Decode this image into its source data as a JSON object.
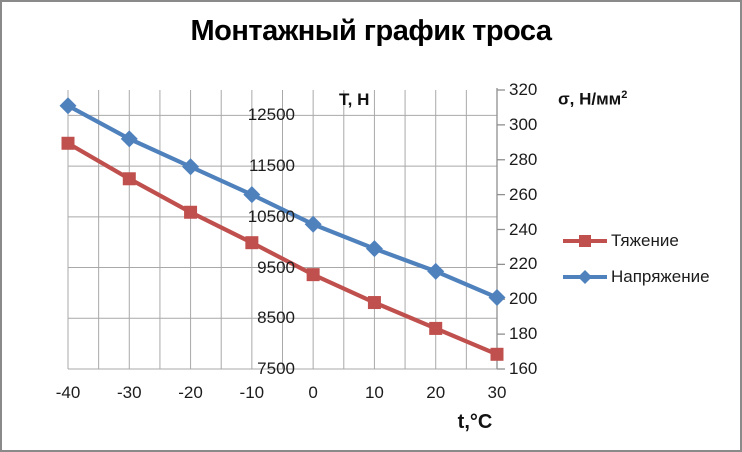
{
  "title": "Монтажный график троса",
  "colors": {
    "tension_series": "#C0504D",
    "stress_series": "#4F81BD",
    "gridline": "#A9A9A9",
    "axis_line": "#8F8F8F",
    "frame_border": "#8A8A8A",
    "text": "#1C1C1C",
    "background": "#FFFFFF"
  },
  "chart_data": {
    "type": "line",
    "title": "Монтажный график троса",
    "xlabel": "t,°С",
    "x": [
      -40,
      -30,
      -20,
      -10,
      0,
      10,
      20,
      30
    ],
    "axes": {
      "x": {
        "min": -40,
        "max": 30,
        "gridline_step": 5,
        "ticks": [
          -40,
          -30,
          -20,
          -10,
          0,
          10,
          20,
          30
        ]
      },
      "y_left": {
        "title": "Т, Н",
        "min": 7500,
        "max": 13000,
        "gridline_step": 1000,
        "ticks": [
          12500,
          11500,
          10500,
          9500,
          8500,
          7500
        ]
      },
      "y_right": {
        "title": "σ, Н/мм²",
        "title_base": "σ, Н/мм",
        "title_sup": "2",
        "min": 160,
        "max": 320,
        "tick_step": 20,
        "ticks": [
          320,
          300,
          280,
          260,
          240,
          220,
          200,
          180,
          160
        ]
      }
    },
    "series": [
      {
        "name": "Тяжение",
        "yaxis": "left",
        "marker": "square",
        "color": "#C0504D",
        "values": [
          11950,
          11250,
          10590,
          9990,
          9360,
          8810,
          8300,
          7790
        ]
      },
      {
        "name": "Напряжение",
        "yaxis": "right",
        "marker": "diamond",
        "color": "#4F81BD",
        "values": [
          311,
          292,
          276,
          260,
          243,
          229,
          216,
          201
        ]
      }
    ],
    "grid": true,
    "legend_position": "right"
  }
}
